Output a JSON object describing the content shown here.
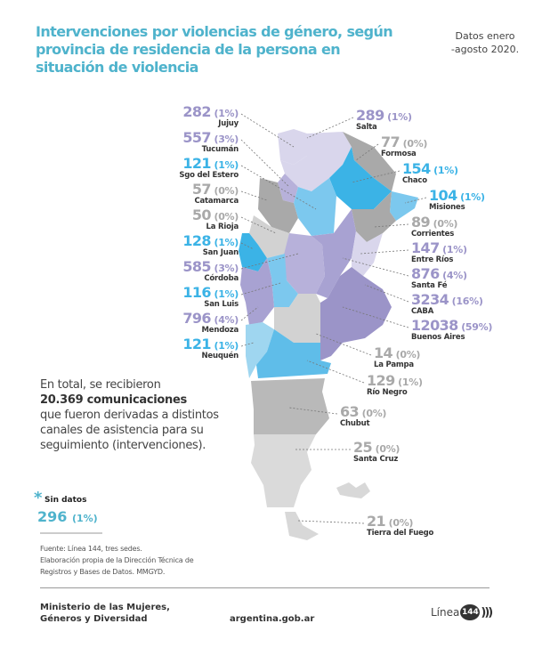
{
  "header": {
    "title": "Intervenciones por violencias de género, según provincia de residencia de la persona en situación de violencia",
    "date_line1": "Datos enero",
    "date_line2": "-agosto 2020."
  },
  "colors": {
    "title": "#4fb3cc",
    "cyan_strong": "#3bb3e6",
    "cyan_light": "#7cc8ee",
    "purple_strong": "#9b94c8",
    "purple_mid": "#b7b1da",
    "purple_light": "#d9d6ec",
    "gray_dark": "#a9a9a9",
    "gray_light": "#d2d2d2"
  },
  "chart_data": {
    "type": "table",
    "title": "Intervenciones por violencias de género, según provincia de residencia de la persona en situación de violencia",
    "subtitle": "Datos enero-agosto 2020.",
    "unit": "intervenciones",
    "total": 20369,
    "provinces": [
      {
        "name": "Jujuy",
        "value": 282,
        "pct": "(1%)",
        "color": "#9b94c8",
        "side": "left"
      },
      {
        "name": "Tucumán",
        "value": 557,
        "pct": "(3%)",
        "color": "#9b94c8",
        "side": "left"
      },
      {
        "name": "Sgo del Estero",
        "value": 121,
        "pct": "(1%)",
        "color": "#3bb3e6",
        "side": "left"
      },
      {
        "name": "Catamarca",
        "value": 57,
        "pct": "(0%)",
        "color": "#a9a9a9",
        "side": "left"
      },
      {
        "name": "La Rioja",
        "value": 50,
        "pct": "(0%)",
        "color": "#a9a9a9",
        "side": "left"
      },
      {
        "name": "San Juan",
        "value": 128,
        "pct": "(1%)",
        "color": "#3bb3e6",
        "side": "left"
      },
      {
        "name": "Córdoba",
        "value": 585,
        "pct": "(3%)",
        "color": "#9b94c8",
        "side": "left"
      },
      {
        "name": "San Luis",
        "value": 116,
        "pct": "(1%)",
        "color": "#3bb3e6",
        "side": "left"
      },
      {
        "name": "Mendoza",
        "value": 796,
        "pct": "(4%)",
        "color": "#9b94c8",
        "side": "left"
      },
      {
        "name": "Neuquén",
        "value": 121,
        "pct": "(1%)",
        "color": "#3bb3e6",
        "side": "left"
      },
      {
        "name": "Salta",
        "value": 289,
        "pct": "(1%)",
        "color": "#9b94c8",
        "side": "right"
      },
      {
        "name": "Formosa",
        "value": 77,
        "pct": "(0%)",
        "color": "#a9a9a9",
        "side": "right"
      },
      {
        "name": "Chaco",
        "value": 154,
        "pct": "(1%)",
        "color": "#3bb3e6",
        "side": "right"
      },
      {
        "name": "Misiones",
        "value": 104,
        "pct": "(1%)",
        "color": "#3bb3e6",
        "side": "right"
      },
      {
        "name": "Corrientes",
        "value": 89,
        "pct": "(0%)",
        "color": "#a9a9a9",
        "side": "right"
      },
      {
        "name": "Entre Ríos",
        "value": 147,
        "pct": "(1%)",
        "color": "#9b94c8",
        "side": "right"
      },
      {
        "name": "Santa Fé",
        "value": 876,
        "pct": "(4%)",
        "color": "#9b94c8",
        "side": "right"
      },
      {
        "name": "CABA",
        "value": 3234,
        "pct": "(16%)",
        "color": "#9b94c8",
        "side": "right"
      },
      {
        "name": "Buenos Aires",
        "value": 12038,
        "pct": "(59%)",
        "color": "#9b94c8",
        "side": "right"
      },
      {
        "name": "La Pampa",
        "value": 14,
        "pct": "(0%)",
        "color": "#a9a9a9",
        "side": "right"
      },
      {
        "name": "Río Negro",
        "value": 129,
        "pct": "(1%)",
        "color": "#a9a9a9",
        "side": "right"
      },
      {
        "name": "Chubut",
        "value": 63,
        "pct": "(0%)",
        "color": "#a9a9a9",
        "side": "right"
      },
      {
        "name": "Santa Cruz",
        "value": 25,
        "pct": "(0%)",
        "color": "#a9a9a9",
        "side": "right"
      },
      {
        "name": "Tierra del Fuego",
        "value": 21,
        "pct": "(0%)",
        "color": "#a9a9a9",
        "side": "right"
      }
    ],
    "no_data": {
      "label": "Sin datos",
      "value": 296,
      "pct": "(1%)"
    }
  },
  "summary": {
    "line1": "En total, se recibieron",
    "bold": "20.369 comunicaciones",
    "rest": "que fueron derivadas a distintos canales de asistencia para su seguimiento (intervenciones)."
  },
  "no_data": {
    "star": "*",
    "label": "Sin datos",
    "value": "296",
    "pct": "(1%)"
  },
  "source": {
    "line1": "Fuente: Línea 144, tres sedes.",
    "line2": "Elaboración propia de la Dirección Técnica de",
    "line3": "Registros y Bases de Datos. MMGYD."
  },
  "footer": {
    "ministry_line1": "Ministerio de las Mujeres,",
    "ministry_line2": "Géneros y Diversidad",
    "site": "argentina.gob.ar",
    "logo_text": "Línea",
    "logo_number": "144",
    "logo_waves": ")))"
  }
}
